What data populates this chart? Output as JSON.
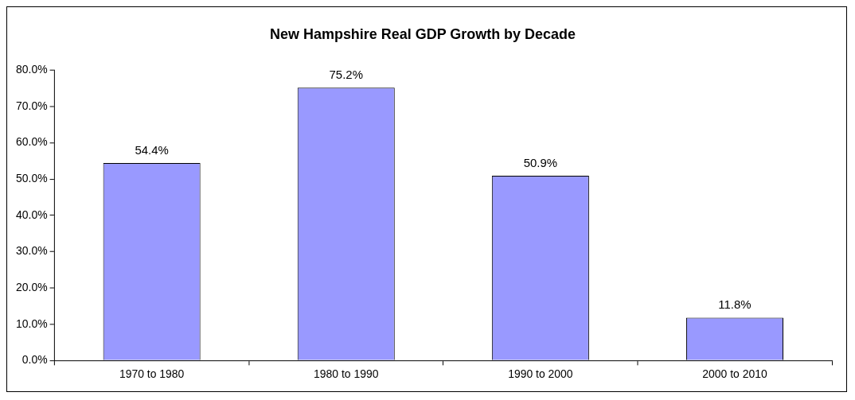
{
  "chart_data": {
    "type": "bar",
    "title": "New Hampshire Real GDP Growth by Decade",
    "categories": [
      "1970 to 1980",
      "1980 to 1990",
      "1990 to 2000",
      "2000 to 2010"
    ],
    "values": [
      54.4,
      75.2,
      50.9,
      11.8
    ],
    "value_labels": [
      "54.4%",
      "75.2%",
      "50.9%",
      "11.8%"
    ],
    "color": "#9999ff",
    "ylim": [
      0,
      80
    ],
    "yticks": [
      {
        "value": 0,
        "label": "0.0%"
      },
      {
        "value": 10,
        "label": "10.0%"
      },
      {
        "value": 20,
        "label": "20.0%"
      },
      {
        "value": 30,
        "label": "30.0%"
      },
      {
        "value": 40,
        "label": "40.0%"
      },
      {
        "value": 50,
        "label": "50.0%"
      },
      {
        "value": 60,
        "label": "60.0%"
      },
      {
        "value": 70,
        "label": "70.0%"
      },
      {
        "value": 80,
        "label": "80.0%"
      }
    ]
  }
}
